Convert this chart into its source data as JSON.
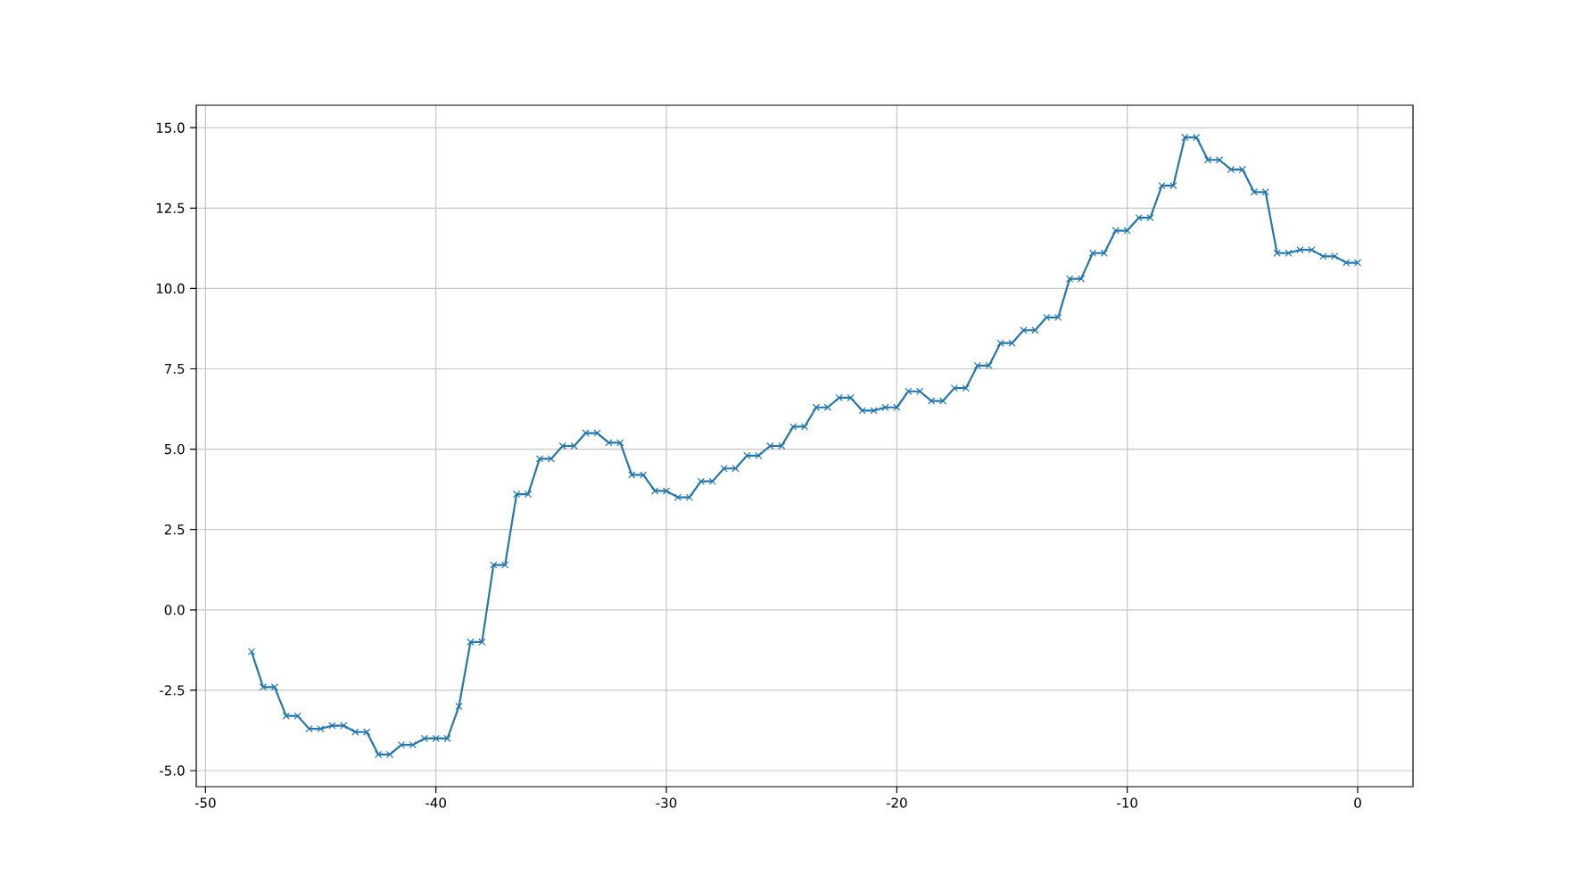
{
  "chart_data": {
    "type": "line",
    "color": "#1f77b4",
    "marker": "cross",
    "line_style": "solid",
    "grid": true,
    "x": [
      -48,
      -47.5,
      -47,
      -46.5,
      -46,
      -45.5,
      -45,
      -44.5,
      -44,
      -43.5,
      -43,
      -42.5,
      -42,
      -41.5,
      -41,
      -40.5,
      -40,
      -39.5,
      -39,
      -38.5,
      -38,
      -37.5,
      -37,
      -36.5,
      -36,
      -35.5,
      -35,
      -34.5,
      -34,
      -33.5,
      -33,
      -32.5,
      -32,
      -31.5,
      -31,
      -30.5,
      -30,
      -29.5,
      -29,
      -28.5,
      -28,
      -27.5,
      -27,
      -26.5,
      -26,
      -25.5,
      -25,
      -24.5,
      -24,
      -23.5,
      -23,
      -22.5,
      -22,
      -21.5,
      -21,
      -20.5,
      -20,
      -19.5,
      -19,
      -18.5,
      -18,
      -17.5,
      -17,
      -16.5,
      -16,
      -15.5,
      -15,
      -14.5,
      -14,
      -13.5,
      -13,
      -12.5,
      -12,
      -11.5,
      -11,
      -10.5,
      -10,
      -9.5,
      -9,
      -8.5,
      -8,
      -7.5,
      -7,
      -6.5,
      -6,
      -5.5,
      -5,
      -4.5,
      -4,
      -3.5,
      -3,
      -2.5,
      -2,
      -1.5,
      -1,
      -0.5,
      0
    ],
    "values": [
      -1.3,
      -2.4,
      -2.4,
      -3.3,
      -3.3,
      -3.7,
      -3.7,
      -3.6,
      -3.6,
      -3.8,
      -3.8,
      -4.5,
      -4.5,
      -4.2,
      -4.2,
      -4.0,
      -4.0,
      -4.0,
      -3.0,
      -1.0,
      -1.0,
      1.4,
      1.4,
      3.6,
      3.6,
      4.7,
      4.7,
      5.1,
      5.1,
      5.5,
      5.5,
      5.2,
      5.2,
      4.2,
      4.2,
      3.7,
      3.7,
      3.5,
      3.5,
      4.0,
      4.0,
      4.4,
      4.4,
      4.8,
      4.8,
      5.1,
      5.1,
      5.7,
      5.7,
      6.3,
      6.3,
      6.6,
      6.6,
      6.2,
      6.2,
      6.3,
      6.3,
      6.8,
      6.8,
      6.5,
      6.5,
      6.9,
      6.9,
      7.6,
      7.6,
      8.3,
      8.3,
      8.7,
      8.7,
      9.1,
      9.1,
      10.3,
      10.3,
      11.1,
      11.1,
      11.8,
      11.8,
      12.2,
      12.2,
      13.2,
      13.2,
      14.7,
      14.7,
      14.0,
      14.0,
      13.7,
      13.7,
      13.0,
      13.0,
      11.1,
      11.1,
      11.2,
      11.2,
      11.0,
      11.0,
      10.8,
      10.8
    ],
    "xlim": [
      -50.4,
      2.4
    ],
    "ylim": [
      -5.5,
      15.7
    ],
    "xticks": [
      -50,
      -40,
      -30,
      -20,
      -10,
      0
    ],
    "yticks": [
      {
        "value": -5,
        "label": "-5.0"
      },
      {
        "value": -2.5,
        "label": "-2.5"
      },
      {
        "value": 0,
        "label": "0.0"
      },
      {
        "value": 2.5,
        "label": "2.5"
      },
      {
        "value": 5,
        "label": "5.0"
      },
      {
        "value": 7.5,
        "label": "7.5"
      },
      {
        "value": 10,
        "label": "10.0"
      },
      {
        "value": 12.5,
        "label": "12.5"
      },
      {
        "value": 15,
        "label": "15.0"
      }
    ]
  }
}
